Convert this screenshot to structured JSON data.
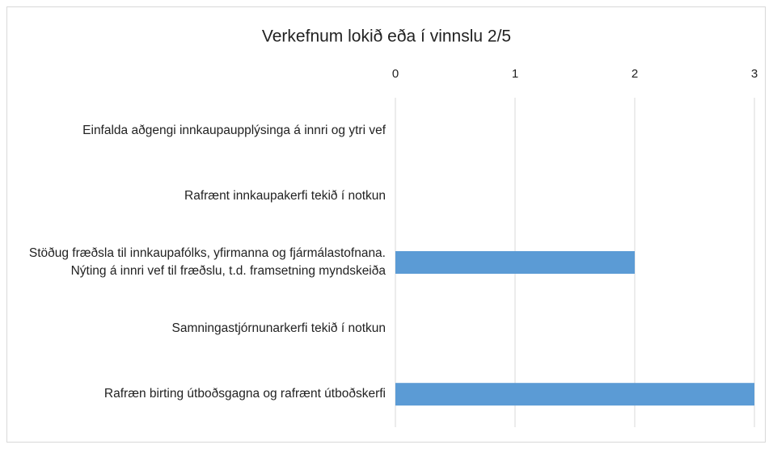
{
  "chart_data": {
    "type": "bar",
    "orientation": "horizontal",
    "title": "Verkefnum lokið eða í vinnslu 2/5",
    "categories": [
      "Einfalda aðgengi innkaupaupplýsinga á innri og ytri vef",
      "Rafrænt innkaupakerfi tekið í notkun",
      "Stöðug fræðsla til innkaupafólks, yfirmanna og fjármálastofnana. Nýting á innri vef til fræðslu, t.d. framsetning myndskeiða",
      "Samningastjórnunarkerfi tekið í notkun",
      "Rafræn birting útboðsgagna og rafrænt útboðskerfi"
    ],
    "values": [
      0,
      0,
      2,
      0,
      3
    ],
    "color": "#5b9bd5",
    "xlim": [
      0,
      3
    ],
    "xticks": [
      0,
      1,
      2,
      3
    ],
    "grid": true
  }
}
